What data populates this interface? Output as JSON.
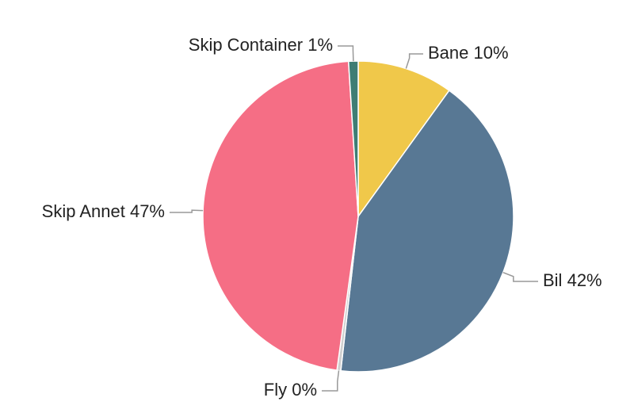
{
  "chart_data": {
    "type": "pie",
    "categories": [
      "Bane",
      "Bil",
      "Fly",
      "Skip Annet",
      "Skip Container"
    ],
    "values": [
      10,
      42,
      0.4,
      47,
      1
    ],
    "value_labels": [
      "10%",
      "42%",
      "0%",
      "47%",
      "1%"
    ],
    "colors": [
      "#f0c84a",
      "#587894",
      "#cfcfcf",
      "#f56e85",
      "#3e7d74"
    ]
  }
}
